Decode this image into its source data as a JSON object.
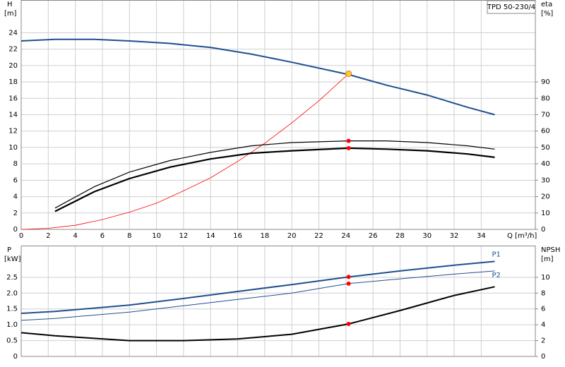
{
  "chart_data": [
    {
      "type": "line",
      "title": "TPD 50-230/4",
      "ylabel": "H",
      "ylabel_unit": "[m]",
      "y2label": "eta",
      "y2label_unit": "[%]",
      "xlabel": "Q [m³/h]",
      "xlim": [
        0,
        38
      ],
      "xticks": [
        0,
        2,
        4,
        6,
        8,
        10,
        12,
        14,
        16,
        18,
        20,
        22,
        24,
        26,
        28,
        30,
        32,
        34
      ],
      "ylim": [
        0,
        28
      ],
      "yticks": [
        0,
        2,
        4,
        6,
        8,
        10,
        12,
        14,
        16,
        18,
        20,
        22,
        24
      ],
      "y2lim": [
        0,
        140
      ],
      "y2ticks": [
        0,
        10,
        20,
        30,
        40,
        50,
        60,
        70,
        80,
        90
      ],
      "grid": true,
      "xtick_labels": true,
      "series": [
        {
          "color": "#1f4f8f",
          "line_width": 2,
          "axis": "y",
          "x": [
            0,
            2.5,
            5.4,
            8,
            11,
            14,
            17,
            20,
            24.2,
            27,
            30,
            33,
            35
          ],
          "values": [
            23.0,
            23.2,
            23.2,
            23.0,
            22.7,
            22.2,
            21.4,
            20.4,
            18.9,
            17.6,
            16.4,
            14.9,
            14.0
          ]
        },
        {
          "color": "#ff0000",
          "line_width": 0.8,
          "axis": "y",
          "x": [
            0,
            2,
            4,
            6,
            8,
            10,
            12,
            14,
            16,
            18,
            20,
            22,
            24.2
          ],
          "values": [
            0,
            0.13,
            0.5,
            1.2,
            2.1,
            3.2,
            4.7,
            6.3,
            8.3,
            10.5,
            13.0,
            15.7,
            19.0
          ]
        },
        {
          "color": "#000000",
          "line_width": 1.2,
          "axis": "y2",
          "x": [
            2.5,
            5.4,
            8,
            11,
            14,
            17,
            20,
            24.2,
            27,
            30,
            33,
            35
          ],
          "values": [
            13,
            26,
            35,
            42,
            47,
            51,
            53,
            54,
            54,
            53,
            51,
            49
          ]
        },
        {
          "color": "#000000",
          "line_width": 2.2,
          "axis": "y2",
          "x": [
            2.5,
            5.4,
            8,
            11,
            14,
            17,
            20,
            24.2,
            27,
            30,
            33,
            35
          ],
          "values": [
            11,
            23,
            31,
            38,
            43,
            46.5,
            48,
            49.6,
            49,
            48,
            46,
            44
          ]
        }
      ],
      "markers": [
        {
          "x": 24.2,
          "y": 54,
          "axis": "y2",
          "color": "#ff0000"
        },
        {
          "x": 24.2,
          "y": 49.6,
          "axis": "y2",
          "color": "#ff0000"
        },
        {
          "x": 24.2,
          "y": 19.0,
          "axis": "y",
          "color": "#ffd21f"
        }
      ]
    },
    {
      "type": "line",
      "ylabel": "P",
      "ylabel_unit": "[kW]",
      "y2label": "NPSH",
      "y2label_unit": "[m]",
      "xlim": [
        0,
        38
      ],
      "xticks": [
        0,
        2,
        4,
        6,
        8,
        10,
        12,
        14,
        16,
        18,
        20,
        22,
        24,
        26,
        28,
        30,
        32,
        34
      ],
      "ylim": [
        0,
        3.5
      ],
      "yticks": [
        0,
        0.5,
        {
          "value": 1,
          "label": "1.0"
        },
        1.5,
        {
          "value": 2,
          "label": "2.0"
        },
        2.5
      ],
      "y2lim": [
        0,
        14
      ],
      "y2ticks": [
        0,
        2,
        4,
        6,
        8,
        10
      ],
      "grid": true,
      "xtick_labels": false,
      "series": [
        {
          "name": "P1",
          "color": "#1f4f8f",
          "line_width": 2,
          "axis": "y",
          "x": [
            0,
            2.5,
            8,
            12,
            16,
            20,
            24.2,
            28,
            32,
            35
          ],
          "values": [
            1.36,
            1.42,
            1.62,
            1.83,
            2.05,
            2.27,
            2.51,
            2.7,
            2.88,
            3.0
          ]
        },
        {
          "name": "P2",
          "color": "#1f4f8f",
          "line_width": 1,
          "axis": "y",
          "x": [
            0,
            2.5,
            8,
            12,
            16,
            20,
            24.2,
            28,
            32,
            35
          ],
          "values": [
            1.14,
            1.2,
            1.4,
            1.6,
            1.8,
            2.0,
            2.3,
            2.45,
            2.6,
            2.7
          ]
        },
        {
          "color": "#000000",
          "line_width": 2,
          "axis": "y2",
          "x": [
            0,
            2.5,
            8,
            12,
            16,
            20,
            24.2,
            28,
            32,
            35
          ],
          "values": [
            3.0,
            2.6,
            2.0,
            2.0,
            2.2,
            2.8,
            4.1,
            5.8,
            7.7,
            8.8
          ]
        }
      ],
      "markers": [
        {
          "x": 24.2,
          "y": 2.51,
          "axis": "y",
          "color": "#ff0000"
        },
        {
          "x": 24.2,
          "y": 2.3,
          "axis": "y",
          "color": "#ff0000"
        },
        {
          "x": 24.2,
          "y": 4.1,
          "axis": "y2",
          "color": "#ff0000"
        }
      ]
    }
  ]
}
